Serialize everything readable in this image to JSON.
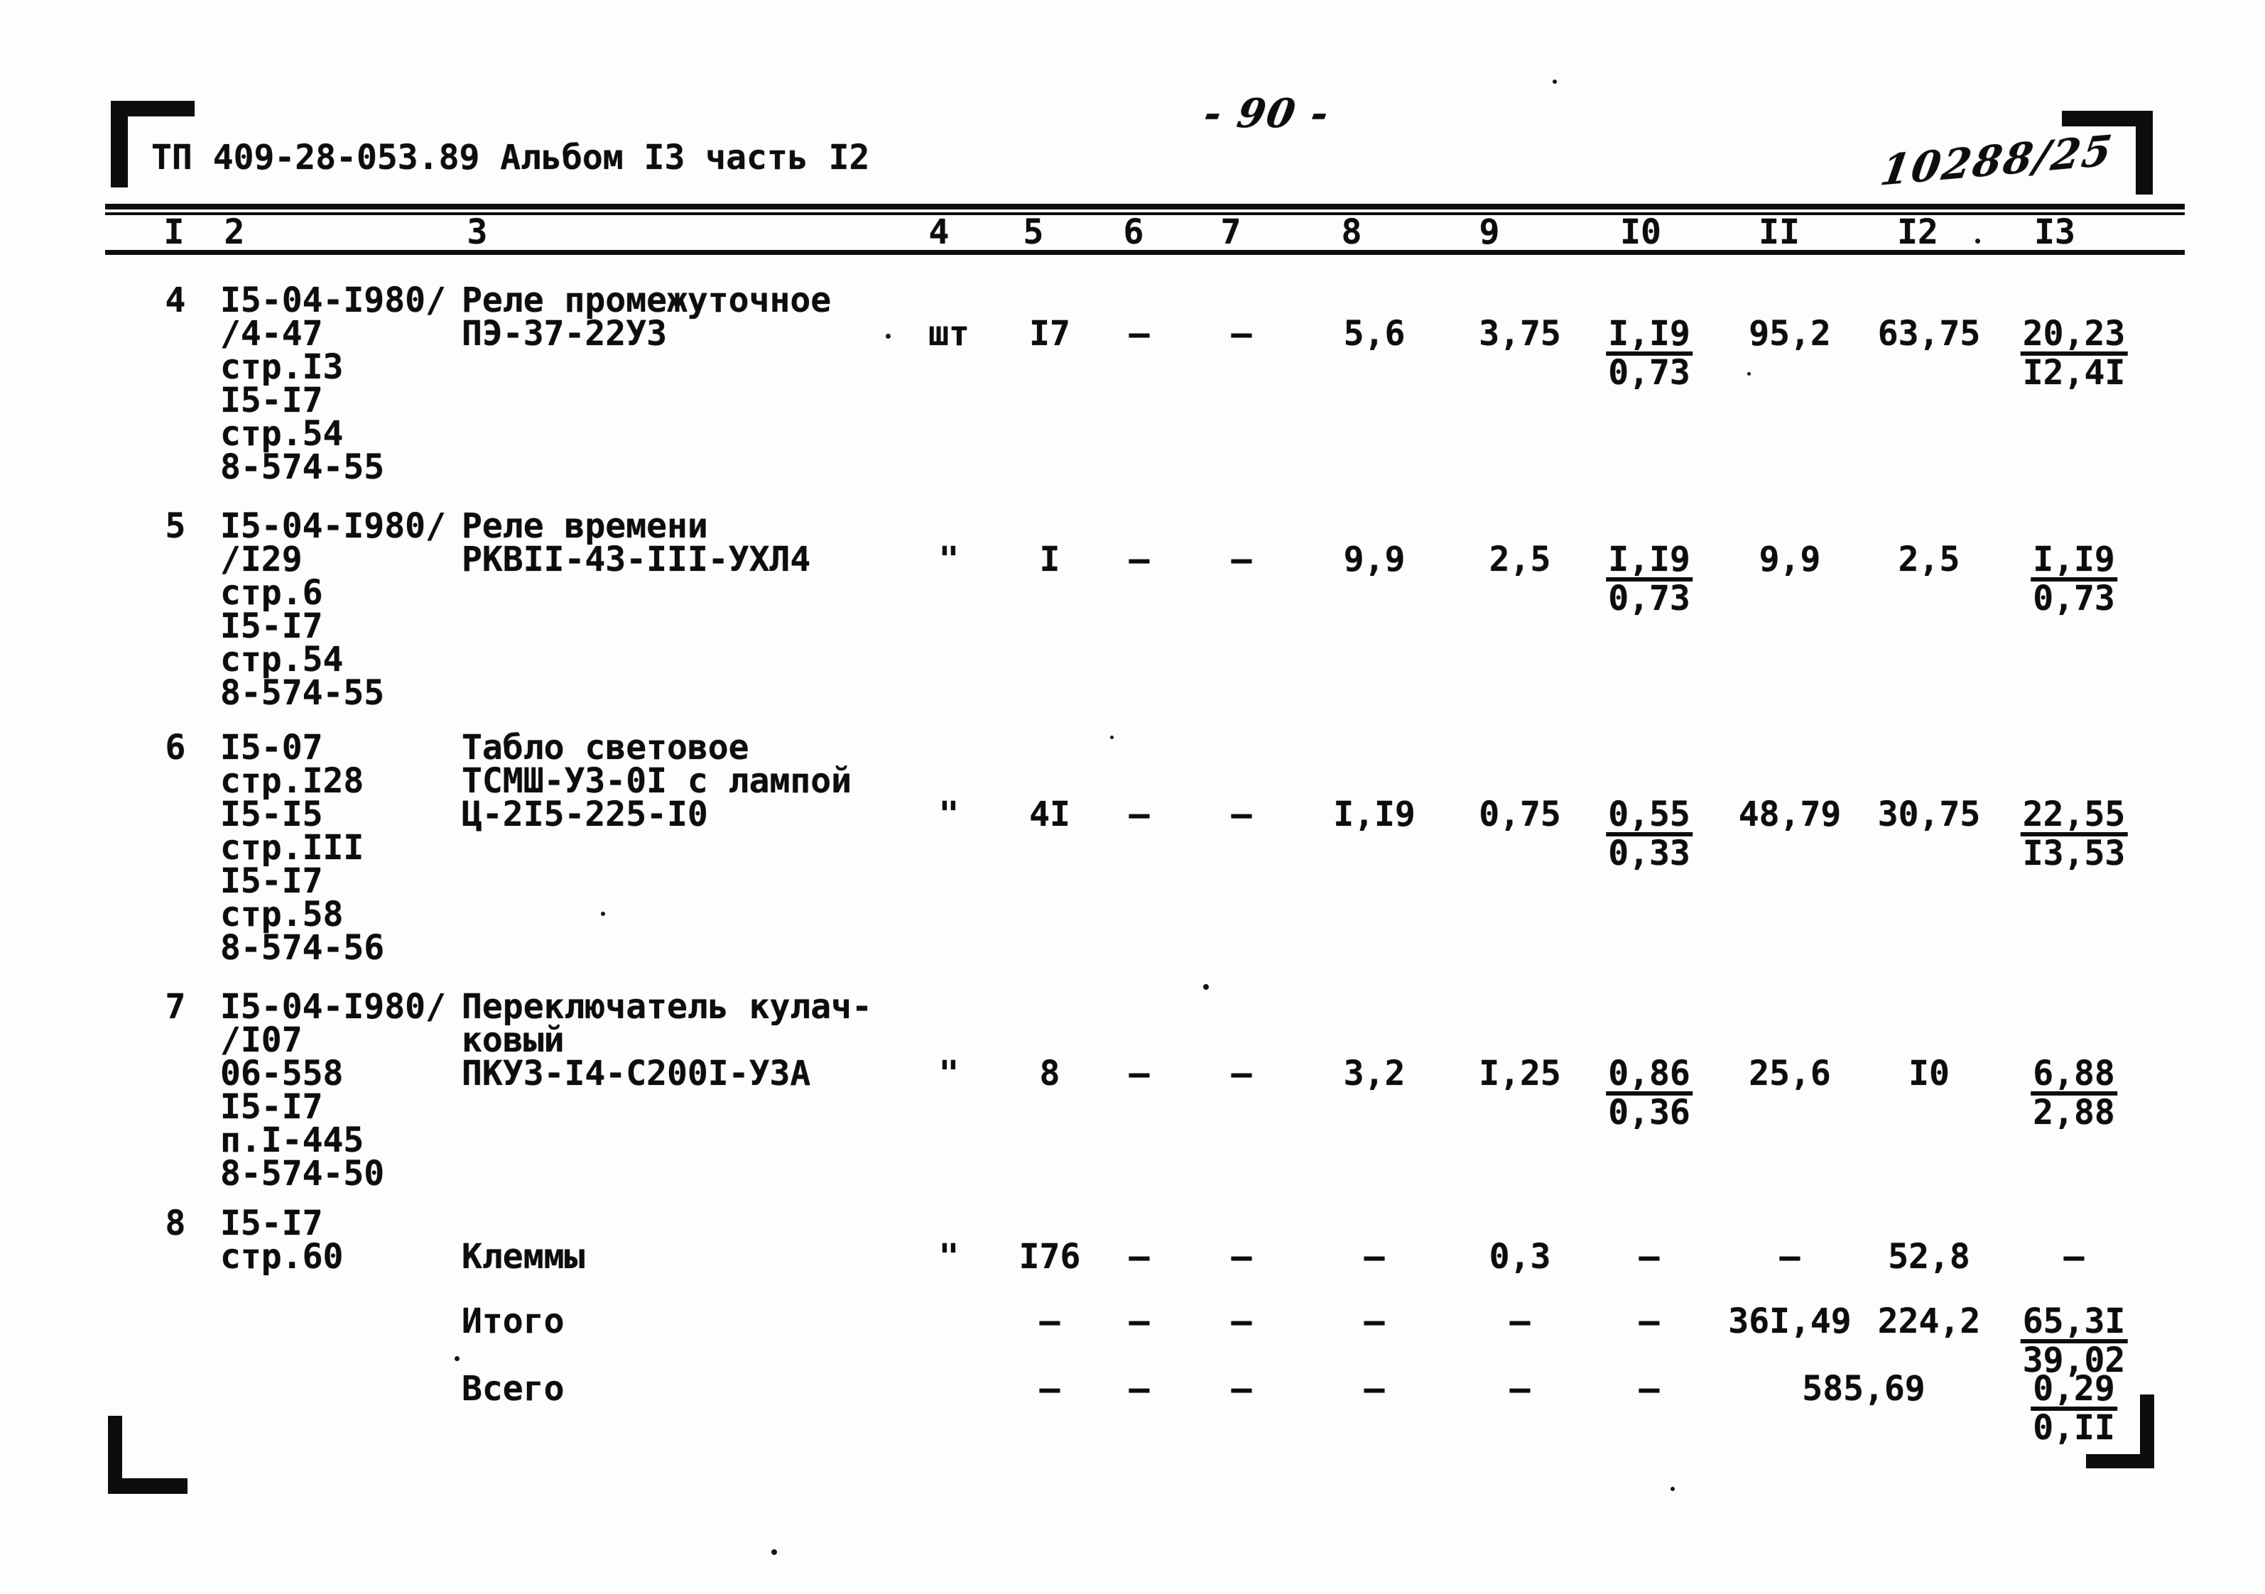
{
  "header": {
    "doc_code": "ТП 409-28-053.89 Альбом I3 часть I2",
    "page_number": "- 90 -",
    "handwritten_stamp": "10288/25"
  },
  "table": {
    "column_headers": [
      "I",
      "2",
      "3",
      "4",
      "5",
      "6",
      "7",
      "8",
      "9",
      "I0",
      "II",
      "I2",
      "I3"
    ],
    "rows": [
      {
        "num": "4",
        "refs": [
          "I5-04-I980/",
          "/4-47",
          "стр.I3",
          "I5-I7",
          "стр.54",
          "8-574-55"
        ],
        "names": [
          "Реле промежуточное",
          "ПЭ-37-22У3"
        ],
        "value_line": 1,
        "values": {
          "c4": "шт",
          "c5": "I7",
          "c6": "–",
          "c7": "–",
          "c8": "5,6",
          "c9": "3,75",
          "c10": "I,I9|0,73",
          "c11": "95,2",
          "c12": "63,75",
          "c13": "20,23|I2,4I"
        }
      },
      {
        "num": "5",
        "refs": [
          "I5-04-I980/",
          "/I29",
          "стр.6",
          "I5-I7",
          "стр.54",
          "8-574-55"
        ],
        "names": [
          "Реле времени",
          "РКВII-43-III-УХЛ4"
        ],
        "value_line": 1,
        "values": {
          "c4": "\"",
          "c5": "I",
          "c6": "–",
          "c7": "–",
          "c8": "9,9",
          "c9": "2,5",
          "c10": "I,I9|0,73",
          "c11": "9,9",
          "c12": "2,5",
          "c13": "I,I9|0,73"
        }
      },
      {
        "num": "6",
        "refs": [
          "I5-07",
          "стр.I28",
          "I5-I5",
          "стр.III",
          "I5-I7",
          "стр.58",
          "8-574-56"
        ],
        "names": [
          "Табло световое",
          "ТСМШ-У3-0I с лампой",
          "Ц-2I5-225-I0"
        ],
        "value_line": 2,
        "values": {
          "c4": "\"",
          "c5": "4I",
          "c6": "–",
          "c7": "–",
          "c8": "I,I9",
          "c9": "0,75",
          "c10": "0,55|0,33",
          "c11": "48,79",
          "c12": "30,75",
          "c13": "22,55|I3,53"
        }
      },
      {
        "num": "7",
        "refs": [
          "I5-04-I980/",
          "/I07",
          "06-558",
          "I5-I7",
          "п.I-445",
          "8-574-50"
        ],
        "names": [
          "Переключатель кулач-",
          "ковый",
          "ПКУ3-I4-С200I-У3А"
        ],
        "value_line": 2,
        "values": {
          "c4": "\"",
          "c5": "8",
          "c6": "–",
          "c7": "–",
          "c8": "3,2",
          "c9": "I,25",
          "c10": "0,86|0,36",
          "c11": "25,6",
          "c12": "I0",
          "c13": "6,88|2,88"
        }
      },
      {
        "num": "8",
        "refs": [
          "I5-I7",
          "стр.60"
        ],
        "names": [
          "",
          "Клеммы"
        ],
        "value_line": 1,
        "values": {
          "c4": "\"",
          "c5": "I76",
          "c6": "–",
          "c7": "–",
          "c8": "–",
          "c9": "0,3",
          "c10": "–",
          "c11": "–",
          "c12": "52,8",
          "c13": "–"
        }
      }
    ],
    "totals": [
      {
        "label": "Итого",
        "values": {
          "c5": "–",
          "c6": "–",
          "c7": "–",
          "c8": "–",
          "c9": "–",
          "c10": "–",
          "c11": "36I,49",
          "c12": "224,2",
          "c13": "65,3I|39,02"
        }
      },
      {
        "label": "Всего",
        "values": {
          "c5": "–",
          "c6": "–",
          "c7": "–",
          "c8": "–",
          "c9": "–",
          "c10": "–",
          "c11_12": "585,69",
          "c13": "0,29|0,II"
        }
      }
    ]
  }
}
